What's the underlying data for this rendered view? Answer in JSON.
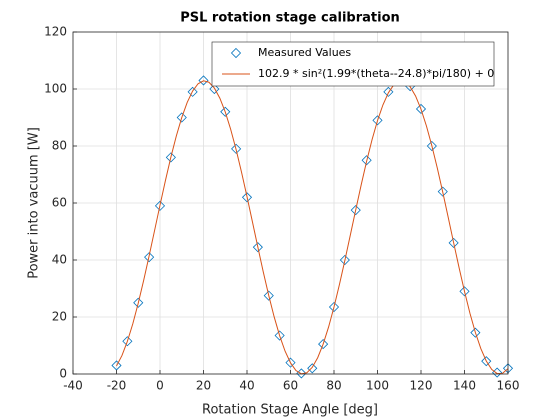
{
  "chart_data": {
    "type": "line",
    "title": "PSL rotation stage calibration",
    "xlabel": "Rotation Stage Angle [deg]",
    "ylabel": "Power into vacuum [W]",
    "xlim": [
      -40,
      160
    ],
    "xticks": [
      -40,
      -20,
      0,
      20,
      40,
      60,
      80,
      100,
      120,
      140,
      160
    ],
    "ylim": [
      0,
      120
    ],
    "yticks": [
      0,
      20,
      40,
      60,
      80,
      100,
      120
    ],
    "grid": true,
    "legend": "top-right",
    "series": [
      {
        "name": "Measured Values",
        "style": "marker",
        "marker": "diamond",
        "color": "#0072bd",
        "x": [
          -20,
          -15,
          -10,
          -5,
          0,
          5,
          10,
          15,
          20,
          25,
          30,
          35,
          40,
          45,
          50,
          55,
          60,
          65,
          70,
          75,
          80,
          85,
          90,
          95,
          100,
          105,
          110,
          115,
          120,
          125,
          130,
          135,
          140,
          145,
          150,
          155,
          160
        ],
        "values": [
          3,
          11.5,
          25,
          41,
          59,
          76,
          90,
          99,
          103,
          100,
          92,
          79,
          62,
          44.5,
          27.5,
          13.5,
          4,
          0.2,
          2,
          10.5,
          23.5,
          40,
          57.5,
          75,
          89,
          99,
          103,
          101,
          93,
          80,
          64,
          46,
          29,
          14.5,
          4.5,
          0.5,
          2
        ]
      },
      {
        "name": "102.9 * sin²(1.99*(theta--24.8)*pi/180) + 0",
        "style": "line",
        "color": "#d95319",
        "x": [
          -20,
          -17.5,
          -15,
          -12.5,
          -10,
          -7.5,
          -5,
          -2.5,
          0,
          2.5,
          5,
          7.5,
          10,
          12.5,
          15,
          17.5,
          20,
          22.5,
          25,
          27.5,
          30,
          32.5,
          35,
          37.5,
          40,
          42.5,
          45,
          47.5,
          50,
          52.5,
          55,
          57.5,
          60,
          62.5,
          65,
          67.5,
          70,
          72.5,
          75,
          77.5,
          80,
          82.5,
          85,
          87.5,
          90,
          92.5,
          95,
          97.5,
          100,
          102.5,
          105,
          107.5,
          110,
          112.5,
          115,
          117.5,
          120,
          122.5,
          125,
          127.5,
          130,
          132.5,
          135,
          137.5,
          140,
          142.5,
          145,
          147.5,
          150,
          152.5,
          155,
          157.5,
          160
        ],
        "values": [
          2.83,
          6.47,
          11.47,
          17.64,
          24.88,
          32.89,
          41.46,
          50.33,
          59.23,
          67.91,
          76.08,
          83.52,
          89.98,
          95.3,
          99.29,
          101.84,
          102.88,
          102.37,
          100.32,
          96.81,
          91.94,
          85.85,
          78.71,
          70.76,
          62.23,
          53.37,
          44.46,
          35.76,
          27.53,
          20.02,
          13.45,
          8.03,
          3.92,
          1.23,
          0.05,
          0.42,
          2.33,
          5.71,
          10.47,
          16.46,
          23.51,
          31.39,
          39.88,
          48.72,
          57.63,
          66.37,
          74.65,
          82.24,
          88.91,
          94.43,
          98.67,
          101.49,
          102.8,
          102.58,
          100.81,
          97.55,
          92.91,
          87.02,
          80.06,
          72.25,
          63.81,
          54.99,
          46.07,
          37.31,
          28.98,
          21.32,
          14.56,
          8.92,
          4.56,
          1.61,
          0.15,
          0.24,
          1.87
        ]
      }
    ]
  }
}
